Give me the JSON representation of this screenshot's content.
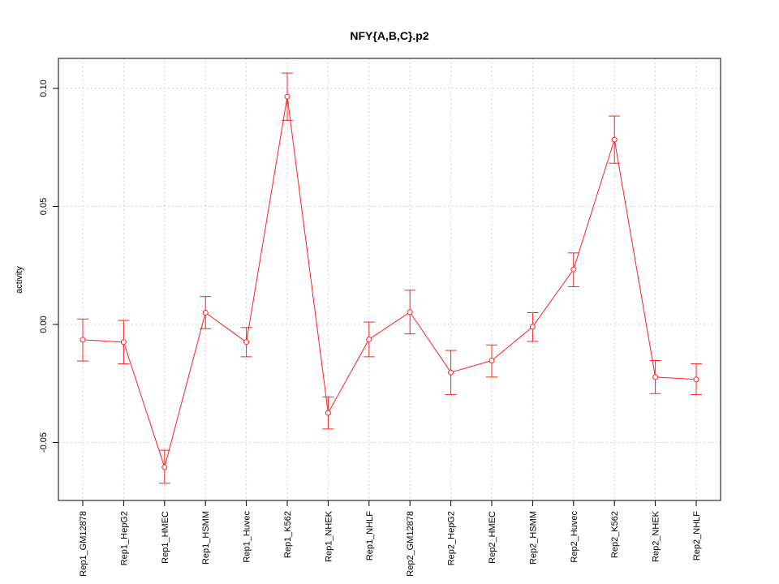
{
  "chart_data": {
    "type": "line",
    "title": "NFY{A,B,C}.p2",
    "xlabel": "",
    "ylabel": "activity",
    "categories": [
      "Rep1_GM12878",
      "Rep1_HepG2",
      "Rep1_HMEC",
      "Rep1_HSMM",
      "Rep1_Huvec",
      "Rep1_K562",
      "Rep1_NHEK",
      "Rep1_NHLF",
      "Rep2_GM12878",
      "Rep2_HepG2",
      "Rep2_HMEC",
      "Rep2_HSMM",
      "Rep2_Huvec",
      "Rep2_K562",
      "Rep2_NHEK",
      "Rep2_NHLF"
    ],
    "values": [
      -0.0065,
      -0.0075,
      -0.0605,
      0.005,
      -0.0075,
      0.0965,
      -0.0375,
      -0.0063,
      0.0052,
      -0.0203,
      -0.0153,
      -0.001,
      0.0233,
      0.0783,
      -0.0223,
      -0.0233
    ],
    "error_low": [
      -0.0155,
      -0.0167,
      -0.0673,
      -0.0018,
      -0.0137,
      0.0865,
      -0.0443,
      -0.0137,
      -0.004,
      -0.0297,
      -0.0223,
      -0.0072,
      0.016,
      0.0683,
      -0.0293,
      -0.0297
    ],
    "error_high": [
      0.0023,
      0.0017,
      -0.0533,
      0.0118,
      -0.0013,
      0.1065,
      -0.0307,
      0.001,
      0.0145,
      -0.011,
      -0.0087,
      0.005,
      0.0303,
      0.0883,
      -0.0153,
      -0.0167
    ],
    "yticks": [
      -0.05,
      0.0,
      0.05,
      0.1
    ],
    "ytick_labels": [
      "-0.05",
      "0.00",
      "0.05",
      "0.10"
    ],
    "ylim": [
      -0.075,
      0.113
    ],
    "grid": true,
    "colors": {
      "series": "#ff2020",
      "grid": "#d3d3d3",
      "axis": "#000000"
    }
  }
}
